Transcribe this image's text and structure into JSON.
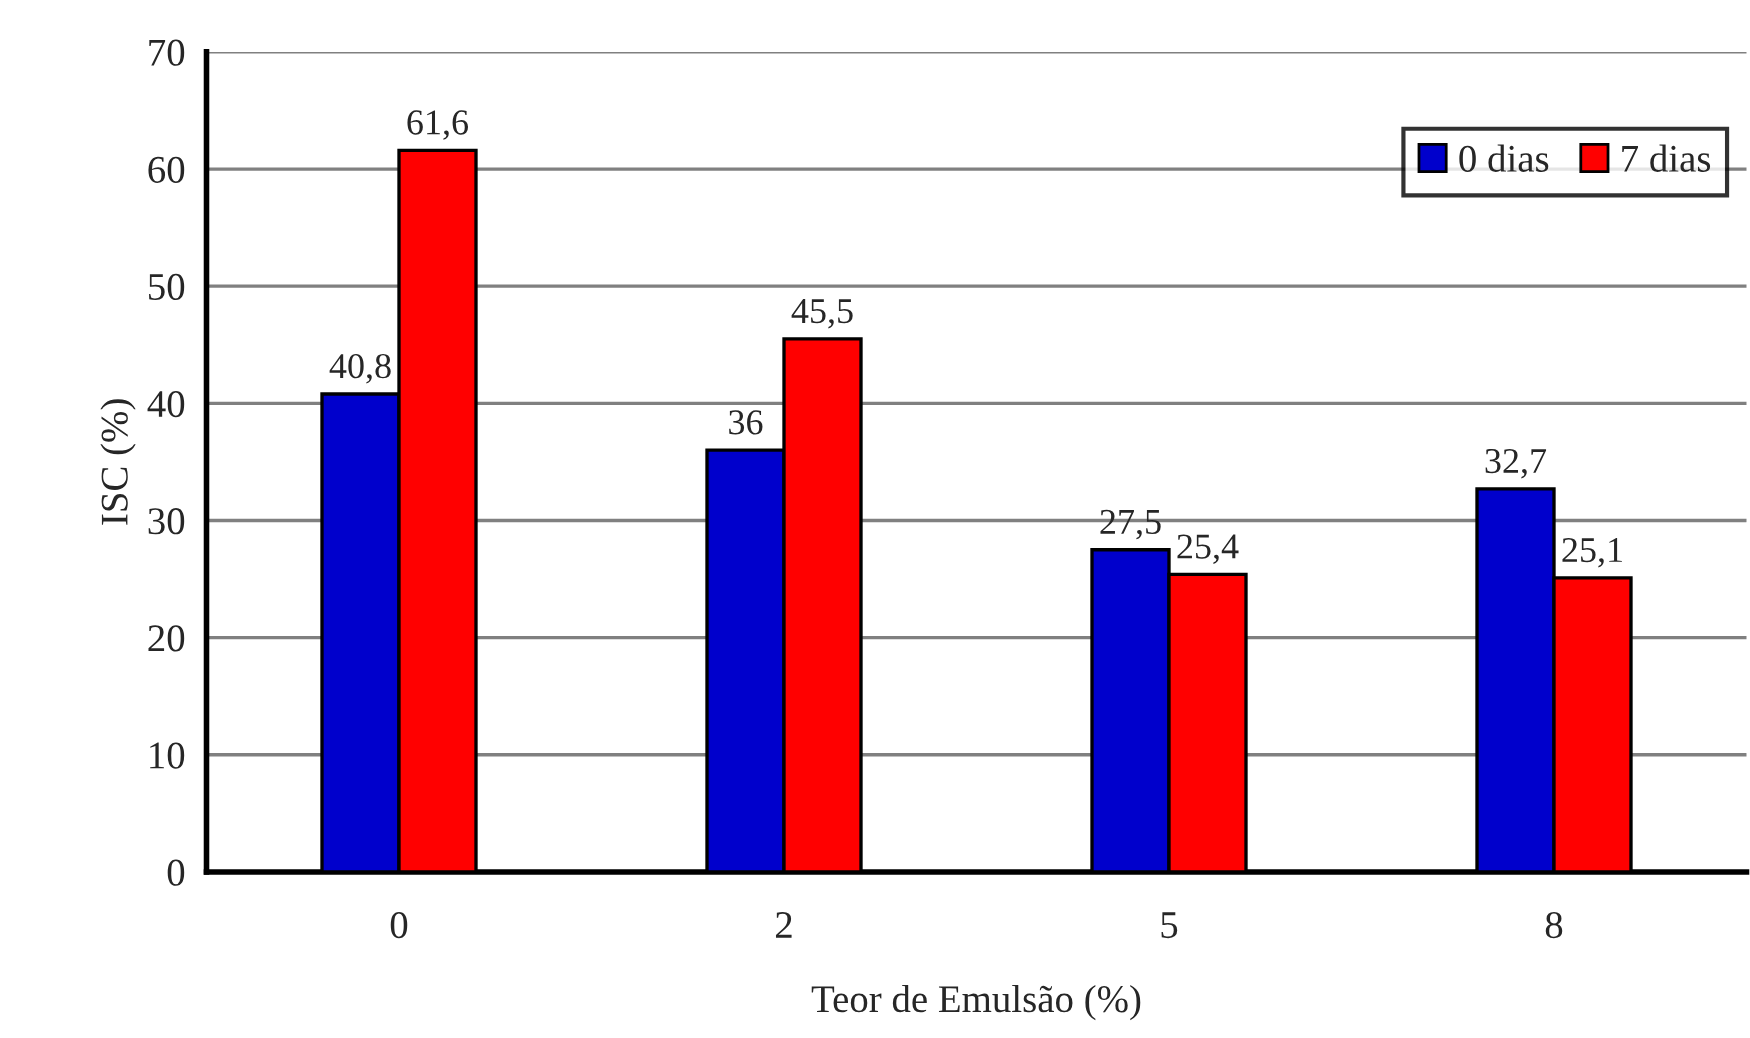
{
  "chart_data": {
    "type": "bar",
    "xlabel": "Teor de Emulsão (%)",
    "ylabel": "ISC (%)",
    "categories": [
      "0",
      "2",
      "5",
      "8"
    ],
    "series": [
      {
        "name": "0 dias",
        "color": "#0000cc",
        "values": [
          40.8,
          36,
          27.5,
          32.7
        ],
        "value_labels": [
          "40,8",
          "36",
          "27,5",
          "32,7"
        ]
      },
      {
        "name": "7 dias",
        "color": "#ff0000",
        "values": [
          61.6,
          45.5,
          25.4,
          25.1
        ],
        "value_labels": [
          "61,6",
          "45,5",
          "25,4",
          "25,1"
        ]
      }
    ],
    "ylim": [
      0,
      70
    ],
    "yticks": [
      0,
      10,
      20,
      30,
      40,
      50,
      60,
      70
    ],
    "grid": "y",
    "legend": "top right"
  }
}
